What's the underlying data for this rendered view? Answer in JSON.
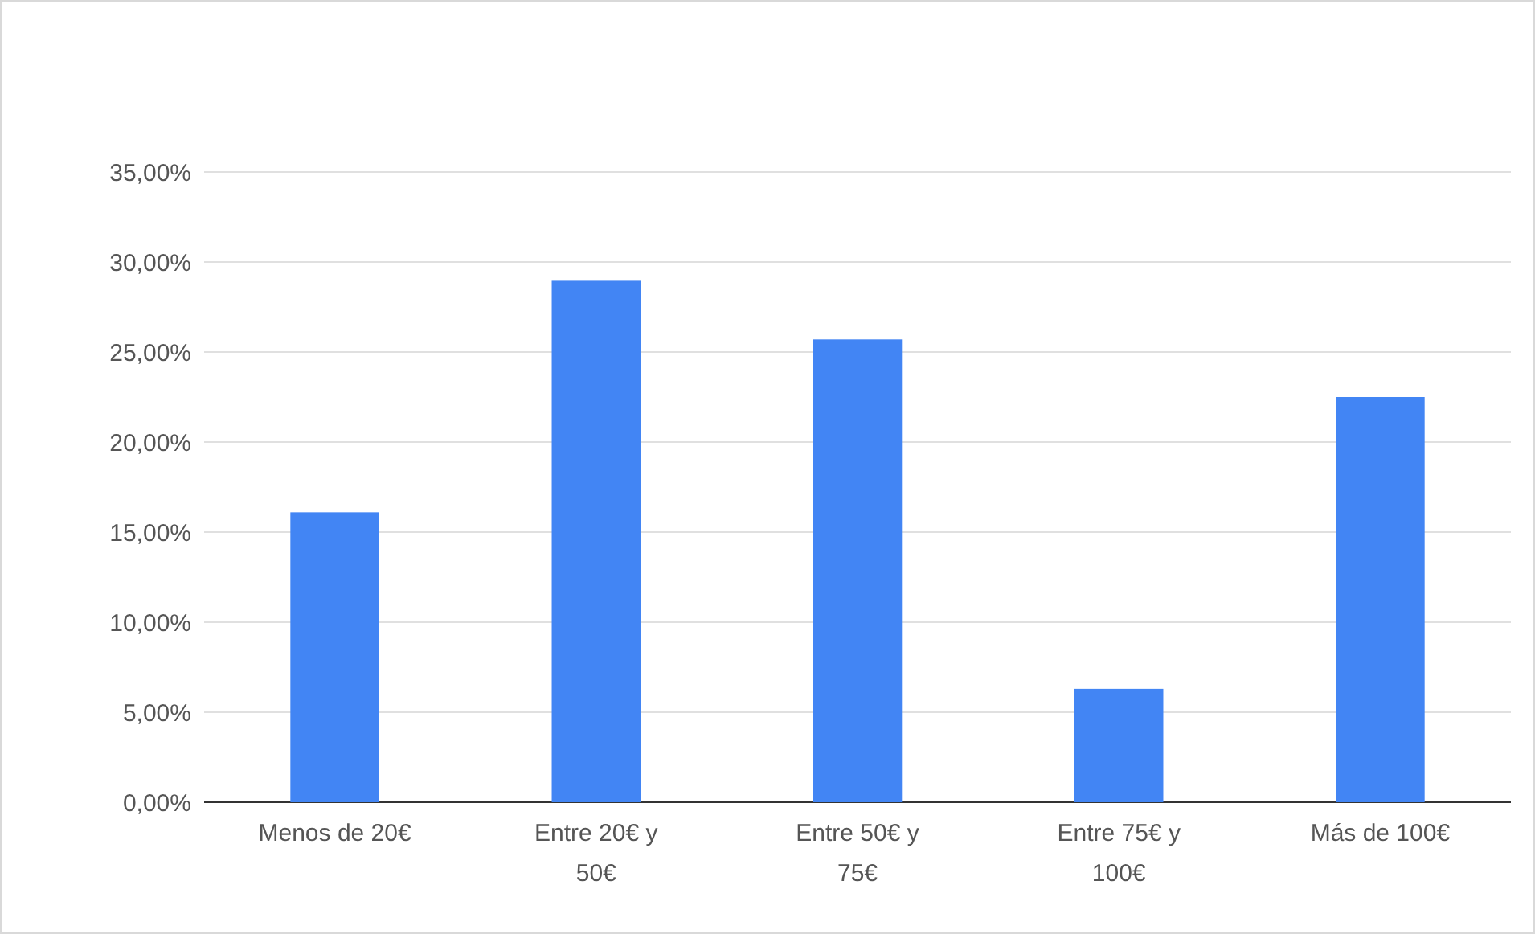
{
  "chart_data": {
    "type": "bar",
    "categories": [
      "Menos de 20€",
      "Entre 20€ y 50€",
      "Entre 50€ y 75€",
      "Entre 75€ y 100€",
      "Más de 100€"
    ],
    "values": [
      16.1,
      29.0,
      25.7,
      6.3,
      22.5
    ],
    "color": "#4285f4",
    "ylim": [
      0,
      35
    ],
    "yticks": [
      {
        "value": 0,
        "label": "0,00%"
      },
      {
        "value": 5,
        "label": "5,00%"
      },
      {
        "value": 10,
        "label": "10,00%"
      },
      {
        "value": 15,
        "label": "15,00%"
      },
      {
        "value": 20,
        "label": "20,00%"
      },
      {
        "value": 25,
        "label": "25,00%"
      },
      {
        "value": 30,
        "label": "30,00%"
      },
      {
        "value": 35,
        "label": "35,00%"
      }
    ],
    "grid": "y"
  }
}
